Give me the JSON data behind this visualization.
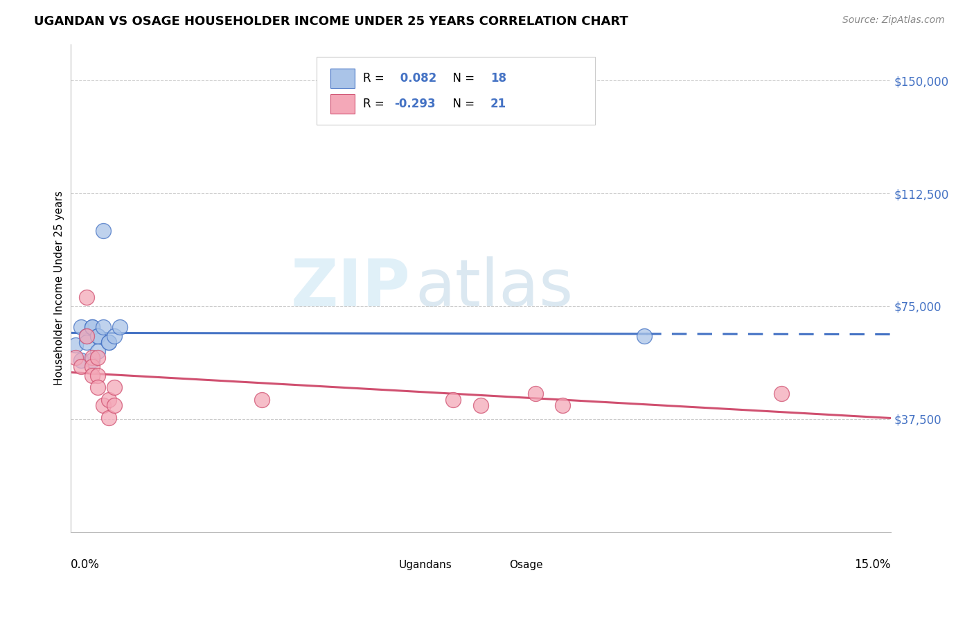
{
  "title": "UGANDAN VS OSAGE HOUSEHOLDER INCOME UNDER 25 YEARS CORRELATION CHART",
  "source": "Source: ZipAtlas.com",
  "ylabel": "Householder Income Under 25 years",
  "y_ticks": [
    0,
    37500,
    75000,
    112500,
    150000
  ],
  "y_tick_labels": [
    "",
    "$37,500",
    "$75,000",
    "$112,500",
    "$150,000"
  ],
  "x_min": 0.0,
  "x_max": 0.15,
  "y_min": 15000,
  "y_max": 162000,
  "ugandan_r": 0.082,
  "ugandan_n": 18,
  "osage_r": -0.293,
  "osage_n": 21,
  "ugandan_color": "#aac4e8",
  "osage_color": "#f4a8b8",
  "ugandan_line_color": "#4472c4",
  "osage_line_color": "#d05070",
  "ugandan_points_x": [
    0.001,
    0.002,
    0.002,
    0.003,
    0.003,
    0.004,
    0.004,
    0.004,
    0.005,
    0.005,
    0.005,
    0.006,
    0.006,
    0.007,
    0.007,
    0.008,
    0.009,
    0.105
  ],
  "ugandan_points_y": [
    62000,
    68000,
    57000,
    65000,
    63000,
    68000,
    68000,
    57000,
    65000,
    65000,
    60000,
    68000,
    100000,
    63000,
    63000,
    65000,
    68000,
    65000
  ],
  "osage_points_x": [
    0.001,
    0.002,
    0.003,
    0.003,
    0.004,
    0.004,
    0.004,
    0.005,
    0.005,
    0.005,
    0.006,
    0.007,
    0.007,
    0.008,
    0.008,
    0.035,
    0.07,
    0.075,
    0.085,
    0.09,
    0.13
  ],
  "osage_points_y": [
    58000,
    55000,
    78000,
    65000,
    58000,
    55000,
    52000,
    58000,
    52000,
    48000,
    42000,
    44000,
    38000,
    48000,
    42000,
    44000,
    44000,
    42000,
    46000,
    42000,
    46000
  ],
  "watermark_zip": "ZIP",
  "watermark_atlas": "atlas",
  "background_color": "#ffffff",
  "grid_color": "#cccccc"
}
